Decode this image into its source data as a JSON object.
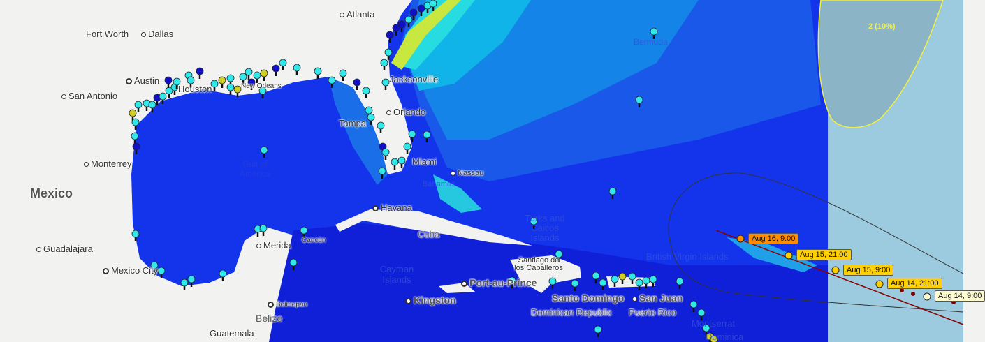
{
  "map": {
    "colors": {
      "land": "#f2f2f0",
      "ocean_deep": "#1434ec",
      "ocean_caribbean": "#1020d8",
      "outside_domain": "#9ccade",
      "cone_fill": "#8bb4c6",
      "cone_outline": "#f4f040",
      "track_line": "#8b0000",
      "pin_cyan": "#30e8e8",
      "pin_blue": "#1010c8",
      "pin_yellow": "#d0d020"
    },
    "places": {
      "atlanta": "Atlanta",
      "fort_worth": "Fort Worth",
      "dallas": "Dallas",
      "austin": "Austin",
      "houston": "Houston",
      "san_antonio": "San Antonio",
      "new_orleans": "New Orleans",
      "jacksonville": "Jacksonville",
      "orlando": "Orlando",
      "tampa": "Tampa",
      "miami": "Miami",
      "nassau": "Nassau",
      "bahamas": "Bahamas",
      "monterrey": "Monterrey",
      "mexico": "Mexico",
      "guadalajara": "Guadalajara",
      "mexico_city": "Mexico City",
      "havana": "Havana",
      "cuba": "Cuba",
      "merida": "Merida",
      "cancun": "Cancún",
      "cayman": "Cayman Islands",
      "belmopan": "Belmopan",
      "belize": "Belize",
      "guatemala": "Guatemala",
      "kingston": "Kingston",
      "port_au_prince": "Port-au-Prince",
      "santiago": "Santiago de los Caballeros",
      "dominican": "Dominican Republic",
      "santo_domingo": "Santo Domingo",
      "puerto_rico": "Puerto Rico",
      "san_juan": "San Juan",
      "bvi": "British Virgin Islands",
      "turks": "Turks and Caicos Islands",
      "bermuda": "Bermuda",
      "gulf": "Gulf of America",
      "montserrat": "Montserrat",
      "dominica": "Dominica"
    },
    "forecast_track": [
      {
        "label": "Aug 16, 9:00",
        "color": "#ff8c00"
      },
      {
        "label": "Aug 15, 21:00",
        "color": "#ffd000"
      },
      {
        "label": "Aug 15, 9:00",
        "color": "#ffd000"
      },
      {
        "label": "Aug 14, 21:00",
        "color": "#ffd000"
      },
      {
        "label": "Aug 14, 9:00",
        "color": "#fffbd0"
      }
    ],
    "cone_label": "2 (10%)"
  }
}
